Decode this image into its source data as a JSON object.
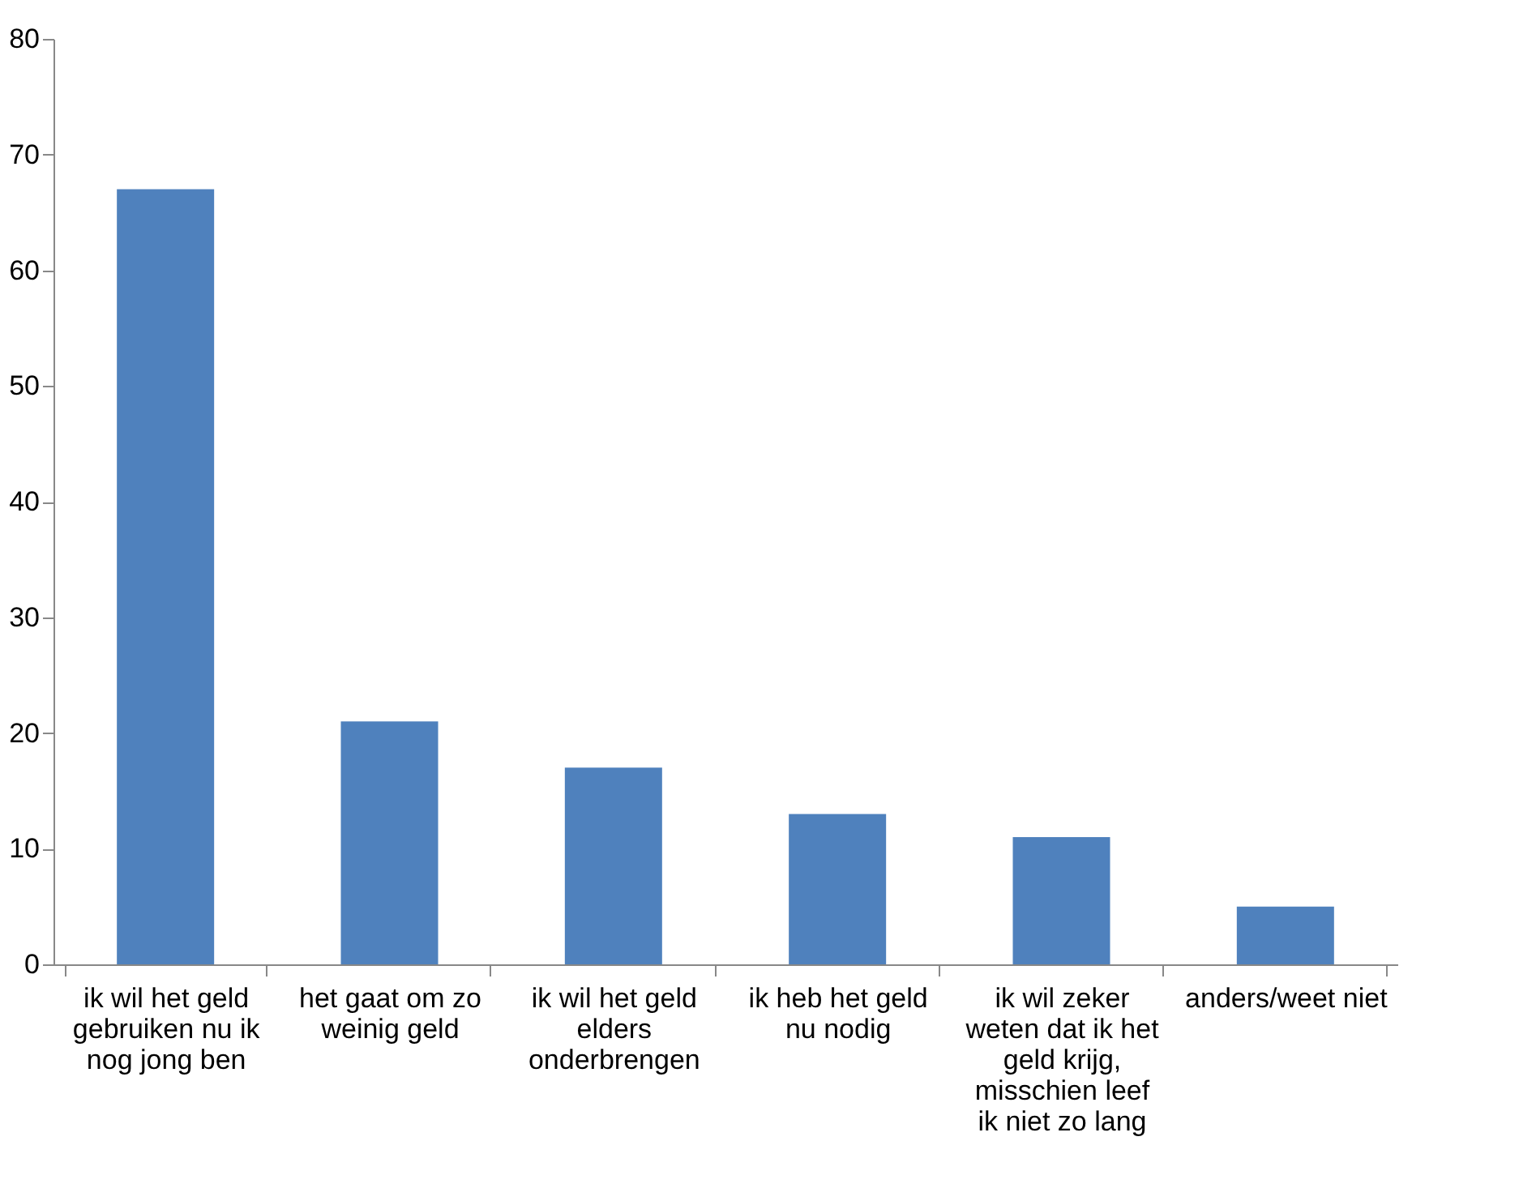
{
  "chart_data": {
    "type": "bar",
    "categories": [
      "ik wil het geld gebruiken nu ik nog jong ben",
      "het gaat om zo weinig geld",
      "ik wil het geld elders onderbrengen",
      "ik heb het geld nu nodig",
      "ik wil zeker weten dat ik het geld krijg, misschien leef ik niet zo lang",
      "anders/weet niet"
    ],
    "values": [
      67,
      21,
      17,
      13,
      11,
      5
    ],
    "color": "#4f81bd",
    "ylim": [
      0,
      80
    ],
    "yticks": [
      0,
      10,
      20,
      30,
      40,
      50,
      60,
      70,
      80
    ],
    "grid": false
  }
}
